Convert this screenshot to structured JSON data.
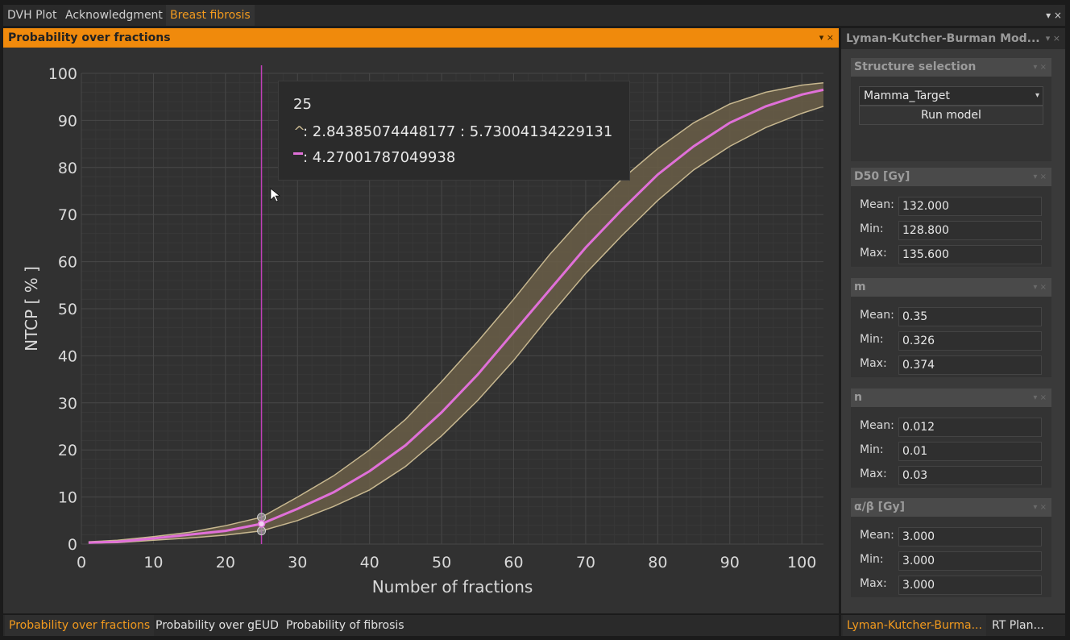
{
  "doc_tabs": [
    "DVH Plot",
    "Acknowledgment",
    "Breast fibrosis"
  ],
  "doc_tabs_menu": "▾ ×",
  "left_panel": {
    "title": "Probability over fractions",
    "controls": "▾ ×",
    "bottom_tabs": [
      "Probability over fractions",
      "Probability over gEUD",
      "Probability of fibrosis"
    ]
  },
  "tooltip": {
    "x_value": "25",
    "band_marker": "^",
    "band_text": ": 2.84385074448177 : 5.73004134229131",
    "mean_text": ": 4.27001787049938"
  },
  "right_panel": {
    "title": "Lyman-Kutcher-Burman Mod...",
    "controls": "▾ ×",
    "structure_selection": {
      "label": "Structure selection",
      "selected": "Mamma_Target",
      "run_label": "Run model"
    },
    "groups": [
      {
        "label": "D50 [Gy]",
        "mean_label": "Mean:",
        "min_label": "Min:",
        "max_label": "Max:",
        "mean": "132.000",
        "min": "128.800",
        "max": "135.600"
      },
      {
        "label": "m",
        "mean_label": "Mean:",
        "min_label": "Min:",
        "max_label": "Max:",
        "mean": "0.35",
        "min": "0.326",
        "max": "0.374"
      },
      {
        "label": "n",
        "mean_label": "Mean:",
        "min_label": "Min:",
        "max_label": "Max:",
        "mean": "0.012",
        "min": "0.01",
        "max": "0.03"
      },
      {
        "label": "α/β [Gy]",
        "mean_label": "Mean:",
        "min_label": "Min:",
        "max_label": "Max:",
        "mean": "3.000",
        "min": "3.000",
        "max": "3.000"
      }
    ],
    "bottom_tabs": [
      "Lyman-Kutcher-Burma...",
      "RT Plan..."
    ]
  },
  "colors": {
    "accent": "#f08a0c",
    "mean_line": "#e070d8",
    "band_fill": "#6a5e48",
    "band_edge": "#c8b890",
    "cursor_line": "#c040b8"
  },
  "chart_data": {
    "type": "line",
    "xlabel": "Number of fractions",
    "ylabel": "NTCP [ % ]",
    "xlim": [
      0,
      103
    ],
    "ylim": [
      0,
      100
    ],
    "x_ticks": [
      0,
      10,
      20,
      30,
      40,
      50,
      60,
      70,
      80,
      90,
      100
    ],
    "y_ticks": [
      0,
      10,
      20,
      30,
      40,
      50,
      60,
      70,
      80,
      90,
      100
    ],
    "grid": true,
    "cursor_x": 25,
    "x": [
      1,
      5,
      10,
      15,
      20,
      25,
      30,
      35,
      40,
      45,
      50,
      55,
      60,
      65,
      70,
      75,
      80,
      85,
      90,
      95,
      100,
      103
    ],
    "series": [
      {
        "values": [
          0.3,
          0.5,
          1.2,
          2.0,
          2.8,
          4.3,
          7.5,
          11.0,
          15.5,
          21.0,
          28.0,
          36.0,
          45.0,
          54.0,
          63.0,
          71.0,
          78.5,
          84.5,
          89.5,
          93.0,
          95.5,
          96.5
        ]
      },
      {
        "values": [
          0.2,
          0.3,
          0.8,
          1.3,
          1.9,
          2.8,
          5.0,
          8.0,
          11.5,
          16.5,
          23.0,
          30.5,
          39.0,
          48.5,
          57.5,
          65.5,
          73.0,
          79.5,
          84.5,
          88.5,
          91.5,
          93.0
        ]
      },
      {
        "values": [
          0.5,
          0.8,
          1.6,
          2.5,
          3.9,
          5.7,
          10.0,
          14.5,
          20.0,
          26.5,
          34.5,
          43.0,
          52.0,
          61.5,
          70.0,
          77.5,
          84.0,
          89.5,
          93.5,
          96.0,
          97.5,
          98.0
        ]
      }
    ]
  }
}
